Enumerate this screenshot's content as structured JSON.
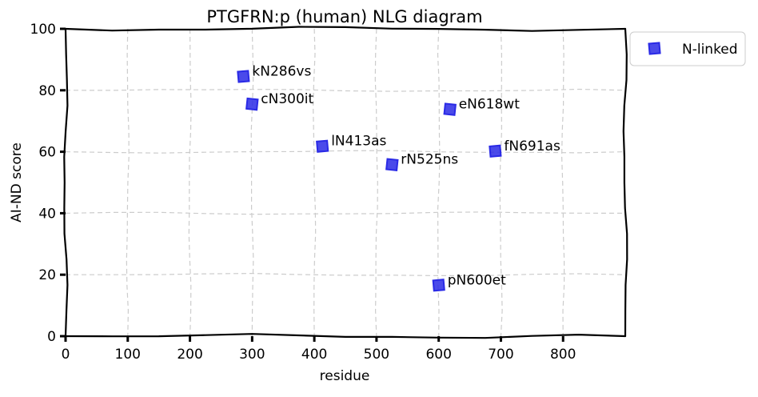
{
  "chart_data": {
    "type": "scatter",
    "title": "PTGFRN:p (human) NLG diagram",
    "xlabel": "residue",
    "ylabel": "AI-ND score",
    "xlim": [
      0,
      900
    ],
    "ylim": [
      0,
      100
    ],
    "xticks": [
      0,
      100,
      200,
      300,
      400,
      500,
      600,
      700,
      800
    ],
    "yticks": [
      0,
      20,
      40,
      60,
      80,
      100
    ],
    "grid": true,
    "legend_position": "outside-top-right",
    "series": [
      {
        "name": "N-linked",
        "color": "#2a2ae6",
        "marker": "square",
        "points": [
          {
            "label": "kN286vs",
            "x": 286,
            "y": 84.5
          },
          {
            "label": "cN300it",
            "x": 300,
            "y": 75.5
          },
          {
            "label": "lN413as",
            "x": 413,
            "y": 61.8
          },
          {
            "label": "rN525ns",
            "x": 525,
            "y": 55.8
          },
          {
            "label": "pN600et",
            "x": 600,
            "y": 16.6
          },
          {
            "label": "eN618wt",
            "x": 618,
            "y": 73.8
          },
          {
            "label": "fN691as",
            "x": 691,
            "y": 60.2
          }
        ]
      }
    ]
  }
}
